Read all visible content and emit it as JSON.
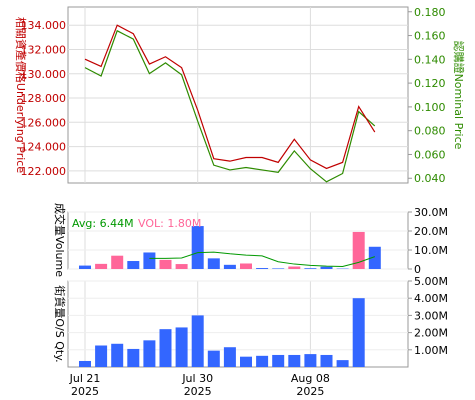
{
  "colors": {
    "underlying": "#c00000",
    "nominal": "#2e8b00",
    "avg": "#009900",
    "vol": "#ff6699",
    "bar_blue": "#3366ff",
    "bar_pink": "#ff6699",
    "avg_line": "#009900",
    "right_axis_text": "#2e8b00",
    "left_axis_text": "#c00000",
    "frame": "#999999"
  },
  "chart_data": [
    {
      "type": "line",
      "panel": "price",
      "ylabel_left": "相關資產價格Underlying Price",
      "ylabel_right": "認購證Nominal Price",
      "left_ticks": [
        "122.000",
        "124.000",
        "126.000",
        "128.000",
        "130.000",
        "132.000",
        "134.000"
      ],
      "left_ylim": [
        121.0,
        135.5
      ],
      "right_ticks": [
        "0.040",
        "0.060",
        "0.080",
        "0.100",
        "0.120",
        "0.140",
        "0.160",
        "0.180"
      ],
      "right_ylim": [
        0.036,
        0.184
      ],
      "grid": true,
      "series": [
        {
          "name": "Underlying Price",
          "axis": "left",
          "values": [
            131.2,
            130.6,
            134.0,
            133.3,
            130.8,
            131.4,
            130.5,
            127.0,
            123.0,
            122.8,
            123.1,
            123.1,
            122.7,
            124.6,
            122.9,
            122.2,
            122.7,
            127.3,
            125.2
          ]
        },
        {
          "name": "Nominal Price",
          "axis": "right",
          "values": [
            0.133,
            0.126,
            0.164,
            0.157,
            0.128,
            0.137,
            0.127,
            0.088,
            0.051,
            0.047,
            0.049,
            0.047,
            0.045,
            0.063,
            0.048,
            0.037,
            0.044,
            0.096,
            0.084
          ]
        }
      ]
    },
    {
      "type": "bar",
      "panel": "volume",
      "ylabel": "成交量Volume",
      "legend_avg": "Avg: 6.44M",
      "legend_vol": "VOL: 1.80M",
      "right_ticks": [
        "0",
        "10.0M",
        "20.0M",
        "30.0M"
      ],
      "ylim": [
        0,
        30
      ],
      "unit": "M",
      "bars": [
        {
          "v": 1.8,
          "c": "blue"
        },
        {
          "v": 2.7,
          "c": "pink"
        },
        {
          "v": 7.0,
          "c": "pink"
        },
        {
          "v": 4.2,
          "c": "blue"
        },
        {
          "v": 8.7,
          "c": "blue"
        },
        {
          "v": 4.8,
          "c": "pink"
        },
        {
          "v": 2.6,
          "c": "pink"
        },
        {
          "v": 22.6,
          "c": "blue"
        },
        {
          "v": 5.6,
          "c": "blue"
        },
        {
          "v": 2.2,
          "c": "blue"
        },
        {
          "v": 2.9,
          "c": "pink"
        },
        {
          "v": 0.5,
          "c": "blue"
        },
        {
          "v": 0.3,
          "c": "blue"
        },
        {
          "v": 1.3,
          "c": "pink"
        },
        {
          "v": 0.4,
          "c": "blue"
        },
        {
          "v": 1.2,
          "c": "blue"
        },
        {
          "v": 0.2,
          "c": "blue"
        },
        {
          "v": 19.5,
          "c": "pink"
        },
        {
          "v": 11.7,
          "c": "blue"
        }
      ],
      "avg_line": [
        null,
        null,
        null,
        null,
        5.6,
        5.6,
        5.8,
        8.6,
        8.9,
        8.0,
        7.3,
        6.9,
        3.8,
        2.6,
        1.9,
        1.5,
        1.3,
        3.5,
        6.5
      ]
    },
    {
      "type": "bar",
      "panel": "outstanding",
      "ylabel": "街貨量O/S Qty.",
      "right_ticks": [
        "1.00M",
        "2.00M",
        "3.00M",
        "4.00M",
        "5.00M"
      ],
      "ylim": [
        0,
        5.0
      ],
      "unit": "M",
      "values": [
        0.35,
        1.25,
        1.35,
        1.05,
        1.55,
        2.2,
        2.3,
        3.0,
        0.95,
        1.15,
        0.6,
        0.65,
        0.7,
        0.7,
        0.75,
        0.7,
        0.4,
        4.0,
        0
      ]
    }
  ],
  "x_axis": {
    "labels": [
      {
        "index": 0,
        "day": "Jul 21",
        "year": "2025"
      },
      {
        "index": 7,
        "day": "Jul 30",
        "year": "2025"
      },
      {
        "index": 14,
        "day": "Aug 08",
        "year": "2025"
      }
    ]
  }
}
